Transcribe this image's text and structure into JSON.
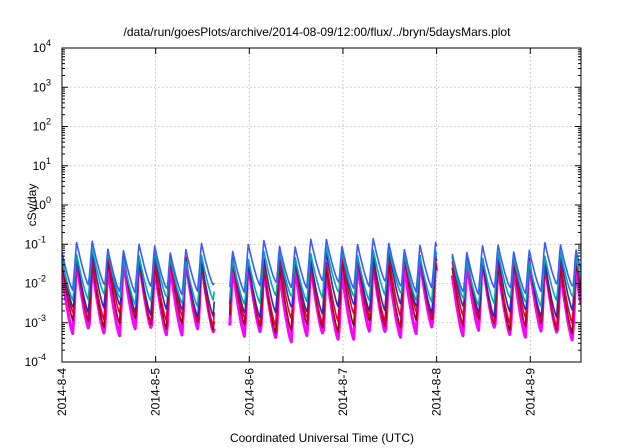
{
  "chart_data": {
    "type": "line",
    "title": "/data/run/goesPlots/archive/2014-08-09/12:00/flux/../bryn/5daysMars.plot",
    "xlabel": "Coordinated Universal Time (UTC)",
    "ylabel": "cSv/day",
    "y_scale": "log",
    "ylim": [
      0.0001,
      10000
    ],
    "xlim": [
      "2014-08-04",
      "2014-08-09T13:00"
    ],
    "grid": true,
    "legend": "none",
    "x_ticks": [
      "2014-8-4",
      "2014-8-5",
      "2014-8-6",
      "2014-8-7",
      "2014-8-8",
      "2014-8-9"
    ],
    "y_ticks": [
      {
        "base": "10",
        "exp": "-4",
        "value": 0.0001
      },
      {
        "base": "10",
        "exp": "-3",
        "value": 0.001
      },
      {
        "base": "10",
        "exp": "-2",
        "value": 0.01
      },
      {
        "base": "10",
        "exp": "-1",
        "value": 0.1
      },
      {
        "base": "10",
        "exp": "0",
        "value": 1
      },
      {
        "base": "10",
        "exp": "1",
        "value": 10
      },
      {
        "base": "10",
        "exp": "2",
        "value": 100
      },
      {
        "base": "10",
        "exp": "3",
        "value": 1000
      },
      {
        "base": "10",
        "exp": "4",
        "value": 10000
      }
    ],
    "oscillation_period_hours": 4,
    "gaps": [
      {
        "start": "2014-08-05T15:00",
        "end": "2014-08-05T19:00"
      },
      {
        "start": "2014-08-08T00:00",
        "end": "2014-08-08T04:00"
      }
    ],
    "series": [
      {
        "color": "#ff00ff",
        "peak": 0.03,
        "trough": 0.0005
      },
      {
        "color": "#9a0000",
        "peak": 0.04,
        "trough": 0.0008
      },
      {
        "color": "#dd0033",
        "peak": 0.045,
        "trough": 0.0012
      },
      {
        "color": "#2a2ab0",
        "peak": 0.055,
        "trough": 0.002
      },
      {
        "color": "#00aaaa",
        "peak": 0.06,
        "trough": 0.004
      },
      {
        "color": "#3b5bff",
        "peak": 0.1,
        "trough": 0.008
      }
    ]
  }
}
